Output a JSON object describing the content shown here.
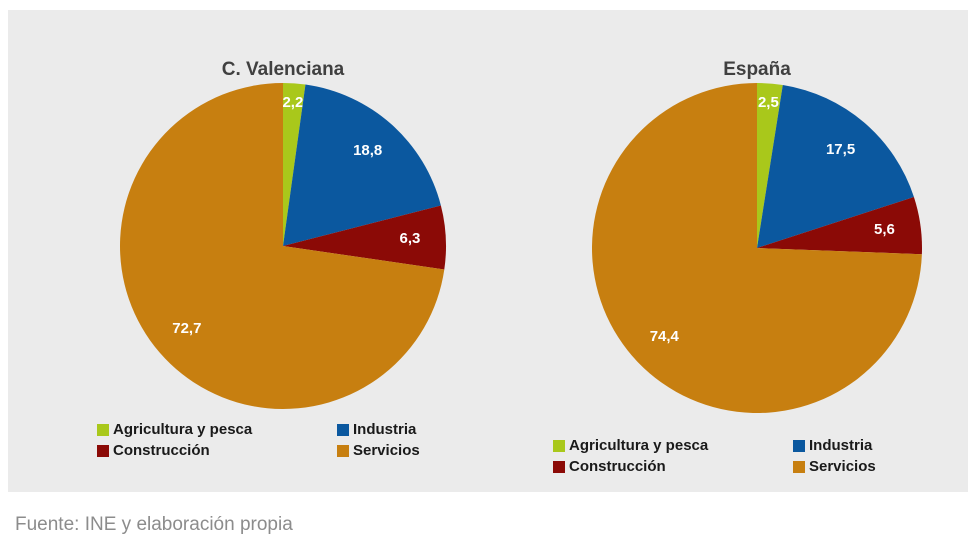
{
  "chart_data": [
    {
      "type": "pie",
      "title": "C. Valenciana",
      "categories": [
        "Agricultura y pesca",
        "Industria",
        "Construcción",
        "Servicios"
      ],
      "values": [
        2.2,
        18.8,
        6.3,
        72.7
      ],
      "value_labels": [
        "2,2",
        "18,8",
        "6,3",
        "72,7"
      ],
      "colors": [
        "#a9c81b",
        "#0b589f",
        "#8b0a06",
        "#c77f10"
      ]
    },
    {
      "type": "pie",
      "title": "España",
      "categories": [
        "Agricultura y pesca",
        "Industria",
        "Construcción",
        "Servicios"
      ],
      "values": [
        2.5,
        17.5,
        5.6,
        74.4
      ],
      "value_labels": [
        "2,5",
        "17,5",
        "5,6",
        "74,4"
      ],
      "colors": [
        "#a9c81b",
        "#0b589f",
        "#8b0a06",
        "#c77f10"
      ]
    }
  ],
  "source": "Fuente: INE y elaboración propia"
}
